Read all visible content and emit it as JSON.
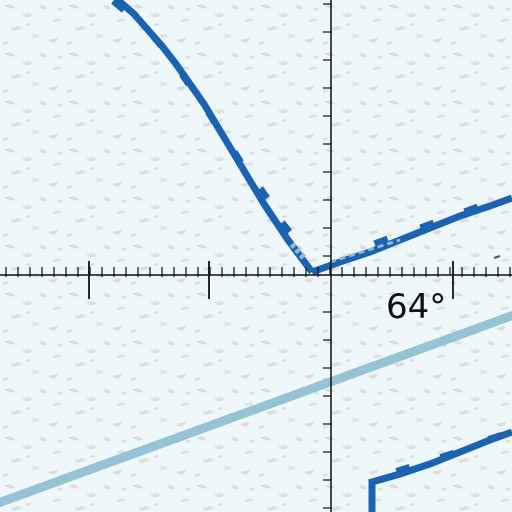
{
  "map": {
    "degree_label": "64°",
    "colors": {
      "background": "#eef7fa",
      "speckle": "#dcdcdc",
      "coastline": "#1b63b0",
      "coastline_dash": "#8fb8d8",
      "contour": "#96c3d6",
      "grid_axis": "#111111"
    }
  }
}
